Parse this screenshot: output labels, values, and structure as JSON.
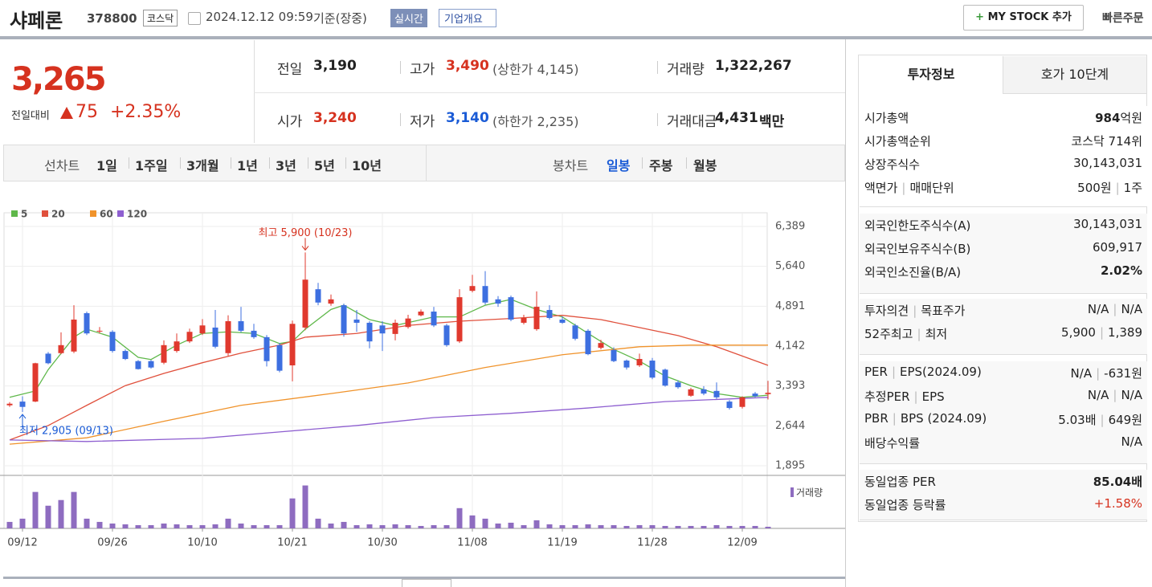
{
  "header": {
    "name": "샤페론",
    "code": "378800",
    "market": "코스닥",
    "datetime": "2024.12.12 09:59",
    "basis": "기준(장중)",
    "realtime": "실시간",
    "overview": "기업개요",
    "mystock": "MY STOCK 추가",
    "quick_order": "빠른주문"
  },
  "price": {
    "current": "3,265",
    "change_label": "전일대비",
    "change": "75",
    "rate": "+2.35%"
  },
  "summary": [
    {
      "label": "전일",
      "value": "3,190"
    },
    {
      "label": "고가",
      "value": "3,490",
      "note": "(상한가 4,145)"
    },
    {
      "label": "거래량",
      "value": "1,322,267"
    },
    {
      "label": "시가",
      "value": "3,240"
    },
    {
      "label": "저가",
      "value": "3,140",
      "note": "(하한가 2,235)"
    },
    {
      "label": "거래대금",
      "value": "4,431",
      "unit": "백만"
    }
  ],
  "chart_tabs": {
    "line_label": "선차트",
    "line_periods": [
      "1일",
      "1주일",
      "3개월",
      "1년",
      "3년",
      "5년",
      "10년"
    ],
    "candle_label": "봉차트",
    "candle_periods": [
      "일봉",
      "주봉",
      "월봉"
    ]
  },
  "chart_data": {
    "type": "candlestick",
    "up_color": "#e0392e",
    "down_color": "#3d6fe0",
    "volume_color": "#8e6cc0",
    "volume_label": "거래량",
    "open": [
      3030,
      3100,
      3100,
      4000,
      4010,
      4040,
      4760,
      4420,
      4410,
      4050,
      3860,
      3860,
      3830,
      4050,
      4230,
      4380,
      4490,
      4010,
      4610,
      4430,
      4310,
      4160,
      3780,
      4490,
      5210,
      4940,
      4910,
      4640,
      4580,
      4530,
      4370,
      4500,
      4720,
      4790,
      4530,
      4230,
      5180,
      5270,
      5020,
      5060,
      4580,
      4460,
      4820,
      4640,
      4530,
      4430,
      4110,
      4070,
      3870,
      3780,
      3870,
      3700,
      3460,
      3210,
      3330,
      3300,
      3100,
      3000,
      3250,
      3240
    ],
    "high": [
      3090,
      3200,
      3830,
      4030,
      4400,
      4910,
      4790,
      4500,
      4440,
      4080,
      3880,
      3880,
      4250,
      4380,
      4470,
      4650,
      4820,
      4720,
      4880,
      4560,
      4350,
      4200,
      4620,
      5900,
      5330,
      5110,
      4940,
      4820,
      4610,
      4610,
      4640,
      4730,
      4830,
      4880,
      4560,
      5210,
      5480,
      5550,
      5080,
      5090,
      4730,
      5170,
      4910,
      4700,
      4560,
      4460,
      4260,
      4120,
      3890,
      4000,
      3920,
      3720,
      3500,
      3360,
      3390,
      3460,
      3130,
      3200,
      3280,
      3490
    ],
    "low": [
      3000,
      2905,
      3090,
      3800,
      3990,
      4010,
      4350,
      4380,
      4020,
      3880,
      3700,
      3720,
      3800,
      4020,
      4200,
      4350,
      4100,
      3960,
      4400,
      4280,
      3760,
      3650,
      3480,
      4440,
      4910,
      4900,
      4320,
      4410,
      4100,
      4050,
      4250,
      4470,
      4700,
      4500,
      4130,
      4200,
      5150,
      4920,
      4880,
      4610,
      4550,
      4430,
      4640,
      4560,
      4250,
      3970,
      4080,
      3840,
      3700,
      3750,
      3520,
      3380,
      3340,
      3190,
      3220,
      3150,
      2950,
      2970,
      3180,
      3140
    ],
    "close": [
      3060,
      3000,
      3820,
      3820,
      4160,
      4640,
      4380,
      4430,
      4050,
      3900,
      3710,
      3740,
      4160,
      4230,
      4410,
      4530,
      4130,
      4610,
      4430,
      4310,
      3860,
      3680,
      4560,
      5390,
      4960,
      5020,
      4380,
      4580,
      4230,
      4380,
      4580,
      4660,
      4790,
      4530,
      4160,
      5060,
      5270,
      4960,
      4940,
      4640,
      4670,
      4880,
      4670,
      4580,
      4280,
      3990,
      4200,
      3860,
      3740,
      3900,
      3550,
      3400,
      3370,
      3330,
      3250,
      3180,
      2980,
      3180,
      3200,
      3265
    ],
    "volume": [
      5280000,
      7920000,
      29700000,
      18480000,
      23100000,
      29700000,
      7920000,
      5280000,
      3960000,
      3300000,
      2640000,
      2640000,
      3960000,
      3300000,
      2640000,
      2640000,
      3300000,
      7920000,
      3960000,
      2640000,
      2640000,
      2640000,
      24420000,
      34980000,
      7920000,
      3960000,
      5280000,
      2640000,
      3300000,
      2640000,
      3300000,
      2640000,
      1980000,
      2640000,
      2640000,
      16500000,
      10560000,
      7920000,
      3960000,
      4620000,
      2640000,
      6600000,
      3300000,
      2640000,
      2640000,
      3300000,
      2640000,
      2640000,
      1980000,
      2640000,
      2640000,
      1980000,
      1980000,
      1980000,
      1980000,
      2640000,
      1980000,
      1980000,
      1980000,
      1322267
    ],
    "volume_ylim": [
      0,
      36000000
    ],
    "ylim": [
      1895,
      6389
    ],
    "yticks": [
      {
        "value": 6389,
        "label": "6,389"
      },
      {
        "value": 5640,
        "label": "5,640"
      },
      {
        "value": 4891,
        "label": "4,891"
      },
      {
        "value": 4142,
        "label": "4,142"
      },
      {
        "value": 3393,
        "label": "3,393"
      },
      {
        "value": 2644,
        "label": "2,644"
      },
      {
        "value": 1895,
        "label": "1,895"
      }
    ],
    "xticks": [
      {
        "value": 1,
        "label": "09/12"
      },
      {
        "value": 8,
        "label": "09/26"
      },
      {
        "value": 15,
        "label": "10/10"
      },
      {
        "value": 22,
        "label": "10/21"
      },
      {
        "value": 29,
        "label": "10/30"
      },
      {
        "value": 36,
        "label": "11/08"
      },
      {
        "value": 43,
        "label": "11/19"
      },
      {
        "value": 50,
        "label": "11/28"
      },
      {
        "value": 57,
        "label": "12/09"
      }
    ],
    "grid": true,
    "series": [
      {
        "name": "5",
        "color": "#5fb84a",
        "x": [
          0,
          2,
          3,
          5,
          6,
          8,
          10,
          11,
          13,
          15,
          17,
          19,
          21,
          22,
          23,
          25,
          26,
          28,
          30,
          33,
          35,
          37,
          39,
          41,
          43,
          45,
          47,
          49,
          51,
          53,
          55,
          57,
          59
        ],
        "values": [
          3180,
          3300,
          3700,
          4310,
          4460,
          4310,
          3930,
          3890,
          4160,
          4380,
          4410,
          4380,
          4190,
          4230,
          4460,
          4830,
          4910,
          4640,
          4530,
          4690,
          4690,
          4910,
          5020,
          4830,
          4690,
          4380,
          4080,
          3860,
          3580,
          3400,
          3250,
          3180,
          3220
        ]
      },
      {
        "name": "20",
        "color": "#e0503c",
        "x": [
          0,
          3,
          6,
          9,
          12,
          15,
          18,
          21,
          23,
          27,
          31,
          35,
          39,
          43,
          46,
          49,
          52,
          55,
          59
        ],
        "values": [
          2380,
          2650,
          3030,
          3400,
          3630,
          3830,
          4010,
          4160,
          4310,
          4380,
          4530,
          4610,
          4660,
          4720,
          4640,
          4490,
          4340,
          4130,
          3780
        ]
      },
      {
        "name": "60",
        "color": "#f0932b",
        "x": [
          0,
          6,
          12,
          18,
          25,
          31,
          37,
          43,
          49,
          53,
          59
        ],
        "values": [
          2300,
          2420,
          2730,
          3030,
          3250,
          3450,
          3740,
          3980,
          4130,
          4160,
          4160
        ]
      },
      {
        "name": "120",
        "color": "#8e5fd0",
        "x": [
          0,
          6,
          15,
          21,
          27,
          33,
          39,
          45,
          51,
          59
        ],
        "values": [
          2380,
          2350,
          2410,
          2530,
          2650,
          2800,
          2880,
          2980,
          3100,
          3180
        ]
      }
    ],
    "annotations": [
      {
        "text": "최고 5,900 (10/23)",
        "x": 23,
        "value": 5900
      },
      {
        "text": "최저 2,905 (09/13)",
        "x": 1,
        "value": 2905
      }
    ]
  },
  "info_panel": {
    "tabs": [
      "투자정보",
      "호가 10단계"
    ],
    "groups": [
      [
        {
          "label": [
            "시가총액"
          ],
          "value": [
            "984"
          ],
          "unit": "억원"
        },
        {
          "label": [
            "시가총액순위"
          ],
          "value": [
            "코스닥 714위"
          ]
        },
        {
          "label": [
            "상장주식수"
          ],
          "value": [
            "30,143,031"
          ]
        },
        {
          "label": [
            "액면가",
            "매매단위"
          ],
          "value": [
            "500원",
            "1주"
          ]
        }
      ],
      [
        {
          "label": [
            "외국인한도주식수(A)"
          ],
          "value": [
            "30,143,031"
          ]
        },
        {
          "label": [
            "외국인보유주식수(B)"
          ],
          "value": [
            "609,917"
          ]
        },
        {
          "label": [
            "외국인소진율(B/A)"
          ],
          "value": [
            "2.02%"
          ]
        }
      ],
      [
        {
          "label": [
            "투자의견",
            "목표주가"
          ],
          "value": [
            "N/A",
            "N/A"
          ]
        },
        {
          "label": [
            "52주최고",
            "최저"
          ],
          "value": [
            "5,900",
            "1,389"
          ]
        }
      ],
      [
        {
          "label": [
            "PER",
            "EPS(2024.09)"
          ],
          "value": [
            "N/A",
            "-631원"
          ]
        },
        {
          "label": [
            "추정PER",
            "EPS"
          ],
          "value": [
            "N/A",
            "N/A"
          ]
        },
        {
          "label": [
            "PBR",
            "BPS (2024.09)"
          ],
          "value": [
            "5.03배",
            "649원"
          ]
        },
        {
          "label": [
            "배당수익률"
          ],
          "value": [
            "N/A"
          ]
        }
      ],
      [
        {
          "label": [
            "동일업종 PER"
          ],
          "value": [
            "85.04배"
          ]
        },
        {
          "label": [
            "동일업종 등락률"
          ],
          "value": [
            "+1.58%"
          ]
        }
      ]
    ]
  }
}
